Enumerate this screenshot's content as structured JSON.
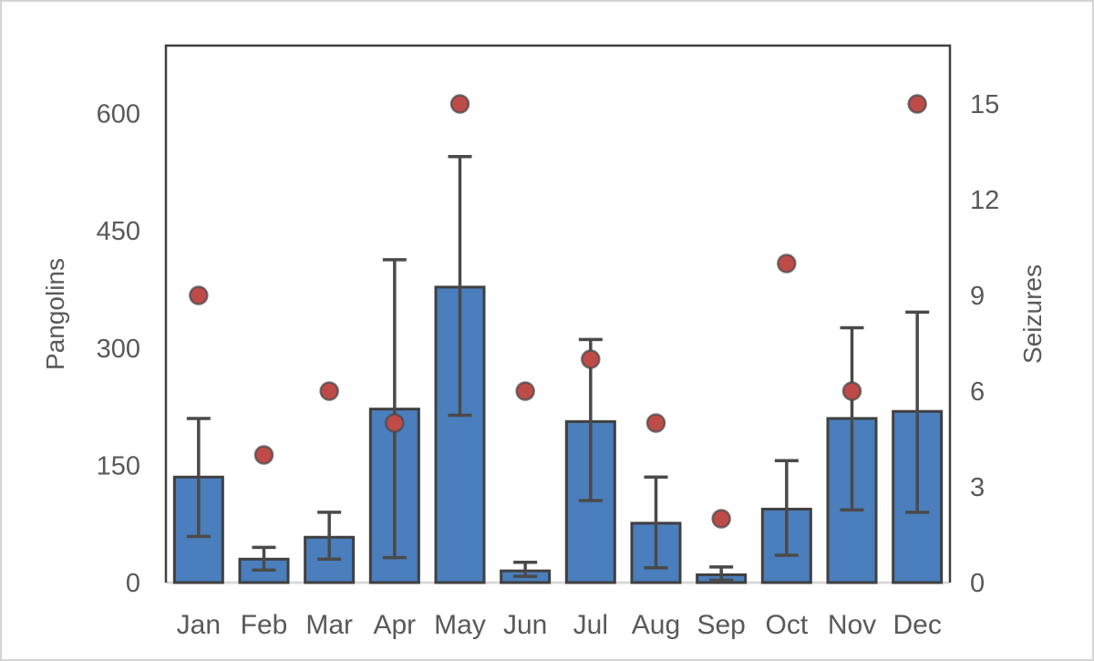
{
  "figure": {
    "background_color": "#ffffff",
    "outer_border_color": "#d4d4d4",
    "plot_border_color": "#404040",
    "baseline_color": "#d9d9d9",
    "text_color": "#595959"
  },
  "chart_data": {
    "type": "bar",
    "subtype": "dual-axis bar with error bars and scatter overlay",
    "title": "",
    "legend": false,
    "grid": false,
    "categories": [
      "Jan",
      "Feb",
      "Mar",
      "Apr",
      "May",
      "Jun",
      "Jul",
      "Aug",
      "Sep",
      "Oct",
      "Nov",
      "Dec"
    ],
    "series": [
      {
        "name": "Pangolins",
        "type": "bar",
        "axis": "left",
        "values": [
          135,
          30,
          58,
          222,
          378,
          15,
          206,
          76,
          10,
          94,
          210,
          219
        ],
        "error_low": [
          59,
          16,
          30,
          32,
          214,
          8,
          105,
          19,
          3,
          35,
          93,
          90
        ],
        "error_high": [
          210,
          45,
          90,
          413,
          545,
          26,
          311,
          135,
          20,
          156,
          326,
          346
        ],
        "fill": "#4a7ebc",
        "stroke": "#404040",
        "error_color": "#4a4a4a"
      },
      {
        "name": "Seizures",
        "type": "scatter",
        "axis": "right",
        "values": [
          9,
          4,
          6,
          5,
          15,
          6,
          7,
          5,
          2,
          10,
          6,
          15
        ],
        "fill": "#be4b48",
        "stroke": "#4a4a4a"
      }
    ],
    "left_axis": {
      "label": "Pangolins",
      "ticks": [
        0,
        150,
        300,
        450,
        600
      ],
      "min": 0,
      "max": 687
    },
    "right_axis": {
      "label": "Seizures",
      "ticks": [
        0,
        3,
        6,
        9,
        12,
        15
      ],
      "min": 0,
      "max": 16.83
    },
    "x_axis": {
      "label": ""
    }
  }
}
